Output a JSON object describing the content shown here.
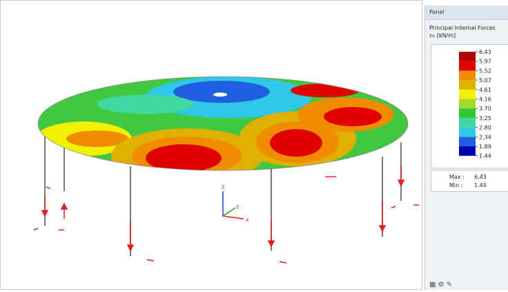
{
  "panel": {
    "header": "Panel",
    "title": "Principal Internal Forces",
    "quantity": "n₁ [kN/m]",
    "legend": {
      "labels": [
        "6.43",
        "5.97",
        "5.52",
        "5.07",
        "4.61",
        "4.16",
        "3.70",
        "3.25",
        "2.80",
        "2.34",
        "1.89",
        "1.44"
      ],
      "colors": [
        "#b00000",
        "#e00000",
        "#f08c00",
        "#e0b000",
        "#f0f000",
        "#a0d830",
        "#30c830",
        "#40d8a0",
        "#30c8e8",
        "#2060e0",
        "#0000b0"
      ]
    },
    "max_label": "Max :",
    "max_value": "6.43",
    "min_label": "Min :",
    "min_value": "1.44"
  },
  "axes": {
    "x": "x",
    "y": "y",
    "z": "z"
  }
}
